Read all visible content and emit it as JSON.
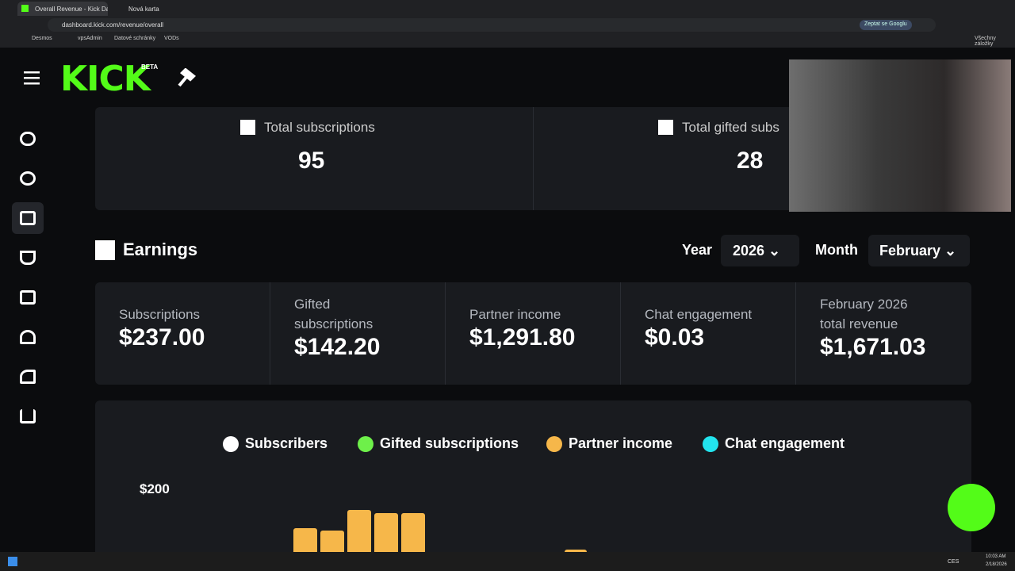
{
  "browser": {
    "tabs": [
      "Overall Revenue - Kick Dashbo",
      "Nová karta"
    ],
    "url": "dashboard.kick.com/revenue/overall",
    "ask_google": "Zeptat se Googlu",
    "bookmarks": [
      "Desmos",
      "vpsAdmin",
      "Datové schránky",
      "VODs"
    ],
    "all_bookmarks": "Všechny záložky"
  },
  "header": {
    "logo": "KICK",
    "badge": "BETA"
  },
  "totals": [
    {
      "label": "Total subscriptions",
      "value": "95"
    },
    {
      "label": "Total gifted subs",
      "value": "28"
    }
  ],
  "earnings": {
    "title": "Earnings",
    "year_label": "Year",
    "year": "2026",
    "month_label": "Month",
    "month": "February",
    "stats": [
      {
        "label": "Subscriptions",
        "value": "$237.00"
      },
      {
        "label": "Gifted subscriptions",
        "value": "$142.20"
      },
      {
        "label": "Partner income",
        "value": "$1,291.80"
      },
      {
        "label": "Chat engagement",
        "value": "$0.03"
      },
      {
        "label": "February 2026 total revenue",
        "value": "$1,671.03"
      }
    ]
  },
  "chart": {
    "legend": [
      "Subscribers",
      "Gifted subscriptions",
      "Partner income",
      "Chat engagement"
    ],
    "y_tick": "$200"
  },
  "taskbar": {
    "lang": "CES",
    "time": "10:03 AM",
    "date": "2/18/2026"
  }
}
